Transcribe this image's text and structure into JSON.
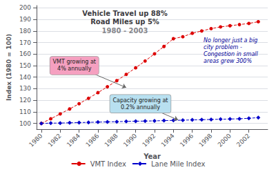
{
  "chart_data": {
    "type": "line",
    "title": "Vehicle Travel up 88%\nRoad Miles up 5%",
    "subtitle": "1980 - 2003",
    "x": [
      1980,
      1981,
      1982,
      1983,
      1984,
      1985,
      1986,
      1987,
      1988,
      1989,
      1990,
      1991,
      1992,
      1993,
      1994,
      1995,
      1996,
      1997,
      1998,
      1999,
      2000,
      2001,
      2002,
      2003
    ],
    "series": [
      {
        "name": "VMT Index",
        "color": "#dd0000",
        "marker": "circle",
        "line_style": "dashed",
        "values": [
          100,
          104.0,
          108.2,
          112.5,
          117.0,
          121.7,
          126.6,
          131.7,
          137.0,
          142.4,
          148.1,
          154.0,
          160.2,
          166.6,
          173.3,
          175.0,
          178.0,
          180.0,
          182.0,
          183.5,
          184.5,
          185.5,
          186.5,
          188.0
        ]
      },
      {
        "name": "Lane Mile Index",
        "color": "#0000cc",
        "marker": "diamond",
        "line_style": "dashed",
        "values": [
          100,
          100.2,
          100.3,
          100.5,
          100.7,
          100.9,
          101.1,
          101.3,
          101.5,
          101.7,
          101.9,
          102.0,
          102.2,
          102.4,
          102.6,
          102.8,
          103.0,
          103.2,
          103.4,
          103.6,
          103.8,
          104.0,
          104.4,
          105.0
        ]
      }
    ],
    "xlabel": "Year",
    "ylabel": "Index (1980 = 100)",
    "xlim": [
      1979.5,
      2004.0
    ],
    "xticks": [
      1980,
      1982,
      1984,
      1986,
      1988,
      1990,
      1992,
      1994,
      1996,
      1998,
      2000,
      2002
    ],
    "ylim": [
      95,
      202
    ],
    "yticks": [
      100,
      110,
      120,
      130,
      140,
      150,
      160,
      170,
      180,
      190,
      200
    ],
    "grid": true,
    "legend": "bottom",
    "annotations": [
      {
        "text": "VMT growing at\n4% annually",
        "xy": [
          1989.0,
          131.0
        ],
        "xytext": [
          1983.5,
          150.0
        ],
        "color": "#f5a0c0"
      },
      {
        "text": "Capacity growing at\n0.2% annually",
        "xy": [
          1994.5,
          103.0
        ],
        "xytext": [
          1990.5,
          117.0
        ],
        "color": "#b8e0f0"
      },
      {
        "text": "No longer just a big\ncity problem -\nCongestion in small\nareas grew 300%",
        "xytext": [
          1997.2,
          175.0
        ],
        "color": "#000099"
      }
    ]
  }
}
